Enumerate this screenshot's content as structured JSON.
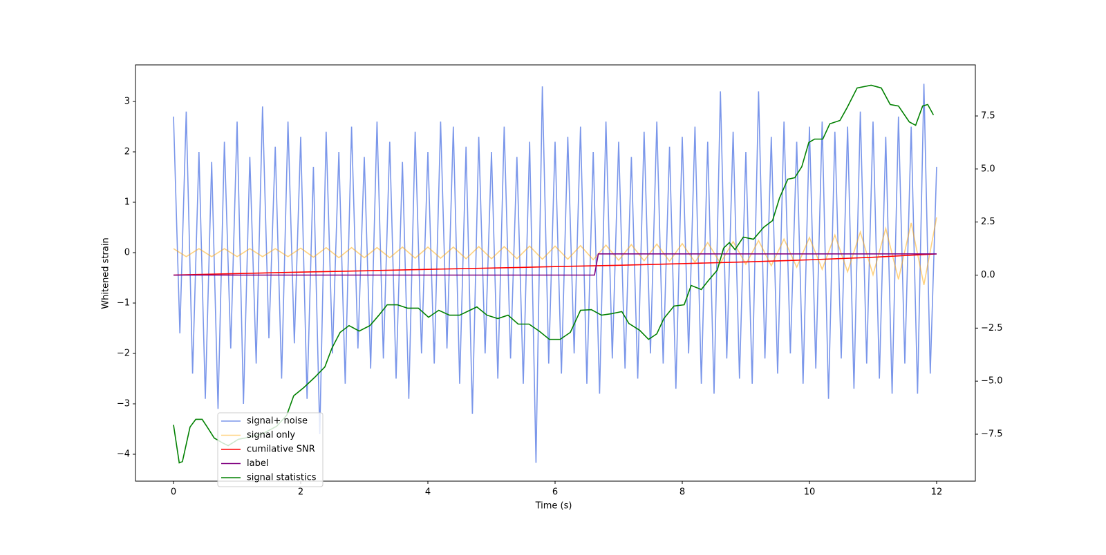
{
  "chart_data": {
    "type": "line",
    "xlabel": "Time (s)",
    "ylabel": "Whitened strain",
    "xlim": [
      -0.598,
      12.609
    ],
    "xticks": [
      0,
      2,
      4,
      6,
      8,
      10,
      12
    ],
    "ylim": [
      -4.534,
      3.726
    ],
    "yticks": [
      {
        "value": -4,
        "label": "−4"
      },
      {
        "value": -3,
        "label": "−3"
      },
      {
        "value": -2,
        "label": "−2"
      },
      {
        "value": -1,
        "label": "−1"
      },
      0,
      1,
      2,
      3
    ],
    "y2lim": [
      -9.713,
      9.908
    ],
    "y2ticks": [
      {
        "value": -7.5,
        "label": "−7.5"
      },
      {
        "value": -5,
        "label": "−5.0"
      },
      {
        "value": -2.5,
        "label": "−2.5"
      },
      {
        "value": 0,
        "label": "0.0"
      },
      2.5,
      {
        "value": 5,
        "label": "5.0"
      },
      {
        "value": 7.5,
        "label": "7.5"
      }
    ],
    "legend": "lower left",
    "series": [
      {
        "name": "signal+ noise",
        "color": "#4169e1",
        "alpha": 0.7,
        "x": [
          0,
          0.1,
          0.2,
          0.3,
          0.4,
          0.5,
          0.6,
          0.7,
          0.8,
          0.9,
          1,
          1.1,
          1.2,
          1.3,
          1.4,
          1.5,
          1.6,
          1.7,
          1.8,
          1.9,
          2,
          2.1,
          2.2,
          2.3,
          2.4,
          2.5,
          2.6,
          2.7,
          2.8,
          2.9,
          3,
          3.1,
          3.2,
          3.3,
          3.4,
          3.5,
          3.6,
          3.7,
          3.8,
          3.9,
          4,
          4.1,
          4.2,
          4.3,
          4.4,
          4.5,
          4.6,
          4.7,
          4.8,
          4.9,
          5,
          5.1,
          5.2,
          5.3,
          5.4,
          5.5,
          5.6,
          5.7,
          5.8,
          5.9,
          6,
          6.1,
          6.2,
          6.3,
          6.4,
          6.5,
          6.6,
          6.7,
          6.8,
          6.9,
          7,
          7.1,
          7.2,
          7.3,
          7.4,
          7.5,
          7.6,
          7.7,
          7.8,
          7.9,
          8,
          8.1,
          8.2,
          8.3,
          8.4,
          8.5,
          8.6,
          8.7,
          8.8,
          8.9,
          9,
          9.1,
          9.2,
          9.3,
          9.4,
          9.5,
          9.6,
          9.7,
          9.8,
          9.9,
          10,
          10.1,
          10.2,
          10.3,
          10.4,
          10.5,
          10.6,
          10.7,
          10.8,
          10.9,
          11,
          11.1,
          11.2,
          11.3,
          11.4,
          11.5,
          11.6,
          11.7,
          11.8,
          11.9,
          12
        ],
        "values": [
          2.7,
          -1.6,
          2.8,
          -2.4,
          2.0,
          -2.9,
          1.8,
          -3.1,
          2.2,
          -1.9,
          2.6,
          -3.0,
          1.9,
          -2.2,
          2.9,
          -1.7,
          2.1,
          -2.5,
          2.6,
          -1.8,
          2.3,
          -2.9,
          1.7,
          -3.6,
          2.4,
          -2.0,
          2.0,
          -2.6,
          2.5,
          -1.9,
          1.9,
          -2.3,
          2.6,
          -2.1,
          2.2,
          -2.5,
          1.8,
          -2.9,
          2.4,
          -2.0,
          2.0,
          -2.2,
          2.6,
          -1.9,
          2.5,
          -2.6,
          2.1,
          -3.2,
          2.3,
          -2.0,
          2.0,
          -2.5,
          2.5,
          -2.1,
          1.9,
          -2.6,
          2.2,
          -4.17,
          3.3,
          -2.2,
          2.2,
          -2.4,
          2.3,
          -2.0,
          2.5,
          -2.6,
          2.0,
          -2.8,
          2.6,
          -2.1,
          2.2,
          -2.3,
          1.9,
          -2.5,
          2.4,
          -2.0,
          2.6,
          -2.2,
          2.1,
          -2.7,
          2.3,
          -2.0,
          2.5,
          -2.6,
          2.2,
          -2.8,
          3.2,
          -2.1,
          2.4,
          -2.5,
          2.0,
          -2.6,
          3.2,
          -2.1,
          2.3,
          -2.4,
          2.6,
          -2.0,
          2.2,
          -2.6,
          2.5,
          -2.3,
          2.6,
          -2.9,
          2.4,
          -2.1,
          2.5,
          -2.7,
          2.8,
          -2.2,
          2.6,
          -2.5,
          2.3,
          -2.8,
          2.7,
          -2.2,
          2.5,
          -2.8,
          3.35,
          -2.4,
          1.7
        ]
      },
      {
        "name": "signal only",
        "color": "#ffa500",
        "alpha": 0.5,
        "x": [
          0,
          0.2,
          0.4,
          0.6,
          0.8,
          1,
          1.2,
          1.4,
          1.6,
          1.8,
          2,
          2.2,
          2.4,
          2.6,
          2.8,
          3,
          3.2,
          3.4,
          3.6,
          3.8,
          4,
          4.2,
          4.4,
          4.6,
          4.8,
          5,
          5.2,
          5.4,
          5.6,
          5.8,
          6,
          6.2,
          6.4,
          6.6,
          6.8,
          7,
          7.2,
          7.4,
          7.6,
          7.8,
          8,
          8.2,
          8.4,
          8.6,
          8.8,
          9,
          9.2,
          9.4,
          9.6,
          9.8,
          10,
          10.2,
          10.4,
          10.6,
          10.8,
          11,
          11.2,
          11.4,
          11.6,
          11.8,
          12
        ],
        "values": [
          0.08,
          -0.08,
          0.08,
          -0.08,
          0.08,
          -0.08,
          0.08,
          -0.08,
          0.08,
          -0.08,
          0.09,
          -0.09,
          0.1,
          -0.1,
          0.1,
          -0.1,
          0.1,
          -0.1,
          0.11,
          -0.11,
          0.11,
          -0.11,
          0.11,
          -0.12,
          0.12,
          -0.12,
          0.12,
          -0.12,
          0.13,
          -0.13,
          0.13,
          -0.13,
          0.14,
          -0.14,
          0.15,
          -0.15,
          0.16,
          -0.16,
          0.17,
          -0.17,
          0.18,
          -0.19,
          0.2,
          -0.21,
          0.22,
          -0.23,
          0.24,
          -0.26,
          0.27,
          -0.29,
          0.3,
          -0.33,
          0.35,
          -0.38,
          0.41,
          -0.44,
          0.48,
          -0.53,
          0.59,
          -0.64,
          0.7
        ]
      },
      {
        "name": "cumilative SNR",
        "color": "#ff0000",
        "axis": "y2",
        "x": [
          0,
          1,
          2,
          3,
          4,
          5,
          6,
          7,
          8,
          9,
          10,
          11,
          11.5,
          12
        ],
        "values": [
          0,
          0.07,
          0.14,
          0.2,
          0.27,
          0.33,
          0.4,
          0.46,
          0.54,
          0.62,
          0.72,
          0.84,
          0.92,
          1.0
        ]
      },
      {
        "name": "label",
        "color": "#800080",
        "axis": "y2",
        "x": [
          0,
          6.62,
          6.68,
          12
        ],
        "values": [
          0,
          0,
          1,
          1
        ]
      },
      {
        "name": "signal statistics",
        "color": "#008000",
        "axis": "y2",
        "x": [
          0,
          0.09,
          0.14,
          0.26,
          0.35,
          0.45,
          0.53,
          0.64,
          0.77,
          0.86,
          1.02,
          1.18,
          1.4,
          1.62,
          1.78,
          1.89,
          2.05,
          2.22,
          2.38,
          2.49,
          2.62,
          2.76,
          2.92,
          3.09,
          3.23,
          3.36,
          3.52,
          3.68,
          3.85,
          4.01,
          4.17,
          4.34,
          4.5,
          4.77,
          4.93,
          5.1,
          5.26,
          5.42,
          5.59,
          5.75,
          5.91,
          6.08,
          6.24,
          6.4,
          6.57,
          6.73,
          6.89,
          7.05,
          7.16,
          7.33,
          7.47,
          7.6,
          7.71,
          7.87,
          8.03,
          8.14,
          8.3,
          8.41,
          8.55,
          8.65,
          8.74,
          8.83,
          8.96,
          9.12,
          9.28,
          9.42,
          9.53,
          9.66,
          9.77,
          9.88,
          9.99,
          10.08,
          10.21,
          10.32,
          10.48,
          10.59,
          10.75,
          10.97,
          11.13,
          11.27,
          11.4,
          11.57,
          11.67,
          11.78,
          11.86,
          11.95
        ],
        "values": [
          -7.06,
          -8.85,
          -8.79,
          -7.16,
          -6.8,
          -6.8,
          -7.16,
          -7.68,
          -7.91,
          -8.04,
          -7.74,
          -7.65,
          -7.48,
          -7.13,
          -6.61,
          -5.69,
          -5.3,
          -4.82,
          -4.33,
          -3.45,
          -2.7,
          -2.38,
          -2.64,
          -2.38,
          -1.89,
          -1.4,
          -1.4,
          -1.56,
          -1.56,
          -1.99,
          -1.66,
          -1.89,
          -1.89,
          -1.5,
          -1.89,
          -2.05,
          -1.89,
          -2.31,
          -2.31,
          -2.64,
          -3.03,
          -3.03,
          -2.7,
          -1.66,
          -1.63,
          -1.89,
          -1.82,
          -1.72,
          -2.28,
          -2.6,
          -3.03,
          -2.77,
          -2.05,
          -1.46,
          -1.4,
          -0.49,
          -0.68,
          -0.26,
          0.23,
          1.27,
          1.53,
          1.2,
          1.79,
          1.69,
          2.25,
          2.57,
          3.64,
          4.52,
          4.59,
          5.11,
          6.25,
          6.41,
          6.41,
          7.13,
          7.29,
          7.88,
          8.82,
          8.95,
          8.82,
          8.04,
          7.97,
          7.22,
          7.06,
          7.97,
          8.04,
          7.55
        ]
      }
    ]
  }
}
